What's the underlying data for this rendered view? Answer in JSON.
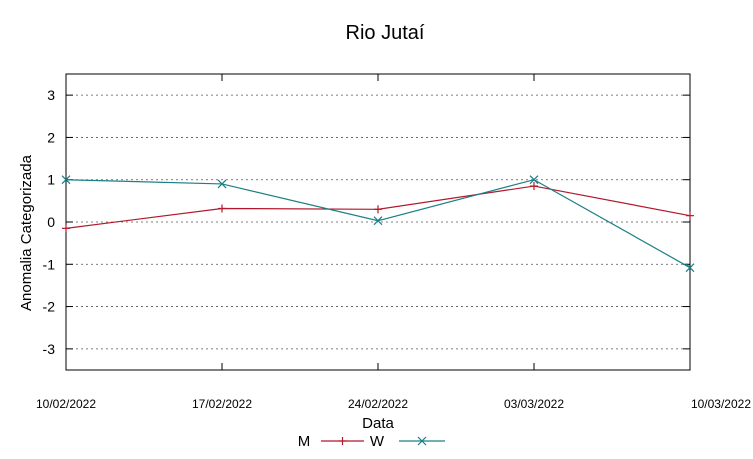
{
  "chart_data": {
    "type": "line",
    "title": "Rio Jutaí",
    "xlabel": "Data",
    "ylabel": "Anomalia Categorizada",
    "categories": [
      "10/02/2022",
      "17/02/2022",
      "24/02/2022",
      "03/03/2022",
      "10/03/2022"
    ],
    "ylim": [
      -3.5,
      3.5
    ],
    "yticks": [
      "3",
      "2",
      "1",
      "0",
      "-1",
      "-2",
      "-3"
    ],
    "ytick_values": [
      3,
      2,
      1,
      0,
      -1,
      -2,
      -3
    ],
    "grid": true,
    "legend_position": "bottom-center",
    "series": [
      {
        "name": "M",
        "values": [
          -0.15,
          0.32,
          0.3,
          0.85,
          0.15
        ],
        "color": "#b2182b",
        "marker": "plus"
      },
      {
        "name": "W",
        "values": [
          1.0,
          0.9,
          0.03,
          1.0,
          -1.08
        ],
        "color": "#1a7f86",
        "marker": "x"
      }
    ]
  }
}
